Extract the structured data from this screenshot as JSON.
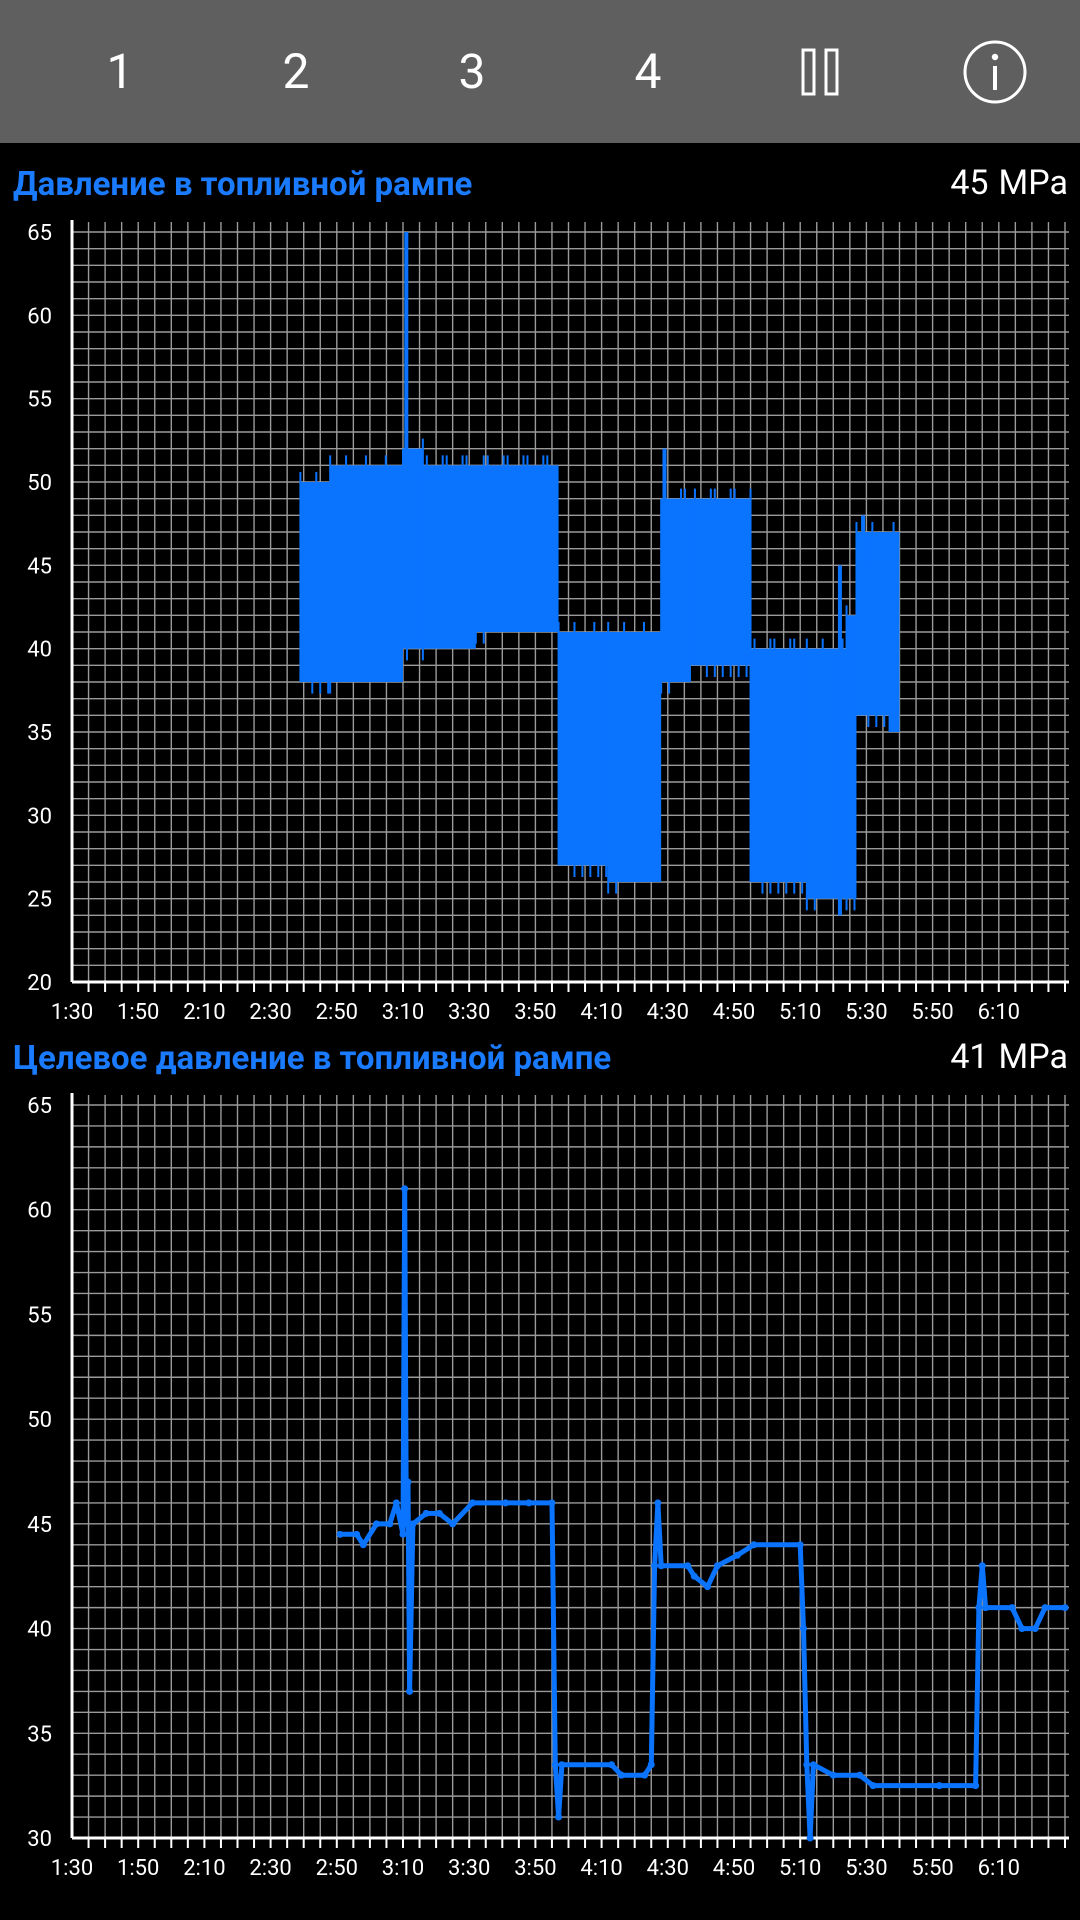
{
  "toolbar": {
    "buttons": [
      {
        "label": "1"
      },
      {
        "label": "2"
      },
      {
        "label": "3"
      },
      {
        "label": "4"
      }
    ]
  },
  "charts": [
    {
      "title": "Давление в топливной рампе",
      "current_value": "45",
      "unit": "MPa"
    },
    {
      "title": "Целевое давление в топливной рампе",
      "current_value": "41",
      "unit": "MPa"
    }
  ],
  "chart_data": [
    {
      "type": "line",
      "title": "Давление в топливной рампе",
      "ylim": [
        20,
        65
      ],
      "y_ticks": [
        20,
        25,
        30,
        35,
        40,
        45,
        50,
        55,
        60,
        65
      ],
      "x_ticks": [
        "1:30",
        "1:50",
        "2:10",
        "2:30",
        "2:50",
        "3:10",
        "3:30",
        "3:50",
        "4:10",
        "4:30",
        "4:50",
        "5:10",
        "5:30",
        "5:50",
        "6:10"
      ],
      "xlim_seconds": [
        90,
        390
      ],
      "grid": true,
      "series": [
        {
          "color": "#0a74ff",
          "envelope": [
            {
              "t_start": 159,
              "t_end": 168,
              "min": 38,
              "max": 50
            },
            {
              "t_start": 168,
              "t_end": 190,
              "min": 38,
              "max": 51
            },
            {
              "t_start": 190,
              "t_end": 196,
              "min": 40,
              "max": 52
            },
            {
              "t_start": 196,
              "t_end": 212,
              "min": 40,
              "max": 51
            },
            {
              "t_start": 212,
              "t_end": 237,
              "min": 41,
              "max": 51
            },
            {
              "t_start": 237,
              "t_end": 252,
              "min": 27,
              "max": 41
            },
            {
              "t_start": 252,
              "t_end": 268,
              "min": 26,
              "max": 41
            },
            {
              "t_start": 268,
              "t_end": 277,
              "min": 38,
              "max": 49
            },
            {
              "t_start": 277,
              "t_end": 295,
              "min": 39,
              "max": 49
            },
            {
              "t_start": 295,
              "t_end": 312,
              "min": 26,
              "max": 40
            },
            {
              "t_start": 312,
              "t_end": 324,
              "min": 25,
              "max": 40
            },
            {
              "t_start": 324,
              "t_end": 327,
              "min": 25,
              "max": 42
            },
            {
              "t_start": 327,
              "t_end": 337,
              "min": 36,
              "max": 47
            },
            {
              "t_start": 337,
              "t_end": 340,
              "min": 35,
              "max": 47
            }
          ],
          "spikes": [
            {
              "t": 191,
              "value": 65
            },
            {
              "t": 269,
              "value": 52
            },
            {
              "t": 322,
              "value": 24
            },
            {
              "t": 329,
              "value": 48
            }
          ]
        }
      ]
    },
    {
      "type": "line",
      "title": "Целевое давление в топливной рампе",
      "ylim": [
        30,
        65
      ],
      "y_ticks": [
        30,
        35,
        40,
        45,
        50,
        55,
        60,
        65
      ],
      "x_ticks": [
        "1:30",
        "1:50",
        "2:10",
        "2:30",
        "2:50",
        "3:10",
        "3:30",
        "3:50",
        "4:10",
        "4:30",
        "4:50",
        "5:10",
        "5:30",
        "5:50",
        "6:10"
      ],
      "xlim_seconds": [
        90,
        390
      ],
      "grid": true,
      "series": [
        {
          "color": "#0a74ff",
          "points": [
            [
              171,
              44.5
            ],
            [
              176,
              44.5
            ],
            [
              178,
              44
            ],
            [
              182,
              45
            ],
            [
              186,
              45
            ],
            [
              188,
              46
            ],
            [
              190,
              44.5
            ],
            [
              190.5,
              61
            ],
            [
              191,
              45
            ],
            [
              191.5,
              47
            ],
            [
              192,
              37
            ],
            [
              193,
              45
            ],
            [
              197,
              45.5
            ],
            [
              201,
              45.5
            ],
            [
              205,
              45
            ],
            [
              211,
              46
            ],
            [
              221,
              46
            ],
            [
              228,
              46
            ],
            [
              235,
              46
            ],
            [
              236,
              33.5
            ],
            [
              237,
              31
            ],
            [
              238,
              33.5
            ],
            [
              253,
              33.5
            ],
            [
              256,
              33
            ],
            [
              263,
              33
            ],
            [
              265,
              33.5
            ],
            [
              266,
              43
            ],
            [
              267,
              46
            ],
            [
              268,
              43
            ],
            [
              276,
              43
            ],
            [
              278,
              42.5
            ],
            [
              282,
              42
            ],
            [
              285,
              43
            ],
            [
              291,
              43.5
            ],
            [
              296,
              44
            ],
            [
              310,
              44
            ],
            [
              311,
              40
            ],
            [
              312,
              33.5
            ],
            [
              313,
              30
            ],
            [
              314,
              33.5
            ],
            [
              320,
              33
            ],
            [
              328,
              33
            ],
            [
              332,
              32.5
            ],
            [
              352,
              32.5
            ],
            [
              363,
              32.5
            ],
            [
              364,
              41
            ],
            [
              365,
              43
            ],
            [
              366,
              41
            ],
            [
              374,
              41
            ],
            [
              377,
              40
            ],
            [
              381,
              40
            ],
            [
              384,
              41
            ],
            [
              390,
              41
            ]
          ]
        }
      ]
    }
  ]
}
